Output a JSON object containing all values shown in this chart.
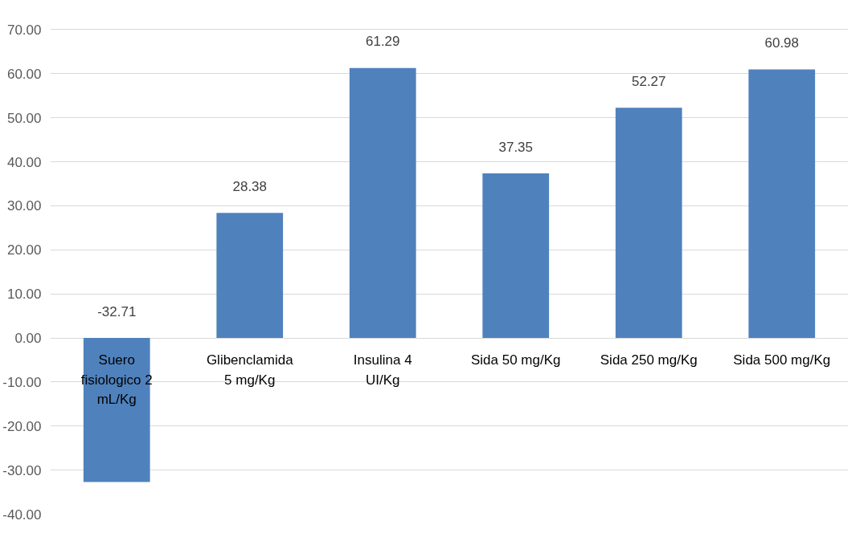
{
  "chart_data": {
    "type": "bar",
    "categories": [
      "Suero fisiologico 2 mL/Kg",
      "Glibenclamida 5 mg/Kg",
      "Insulina 4 UI/Kg",
      "Sida 50 mg/Kg",
      "Sida 250 mg/Kg",
      "Sida 500 mg/Kg"
    ],
    "values": [
      -32.71,
      28.38,
      61.29,
      37.35,
      52.27,
      60.98
    ],
    "color": "#4f81bd",
    "data_labels": true,
    "grid": "y",
    "ylim": [
      -40,
      70
    ],
    "yticks": [
      {
        "value": -40,
        "label": "-40.00"
      },
      {
        "value": -30,
        "label": "-30.00"
      },
      {
        "value": -20,
        "label": "-20.00"
      },
      {
        "value": -10,
        "label": "-10.00"
      },
      {
        "value": 0,
        "label": "0.00"
      },
      {
        "value": 10,
        "label": "10.00"
      },
      {
        "value": 20,
        "label": "20.00"
      },
      {
        "value": 30,
        "label": "30.00"
      },
      {
        "value": 40,
        "label": "40.00"
      },
      {
        "value": 50,
        "label": "50.00"
      },
      {
        "value": 60,
        "label": "60.00"
      },
      {
        "value": 70,
        "label": "70.00"
      }
    ]
  }
}
